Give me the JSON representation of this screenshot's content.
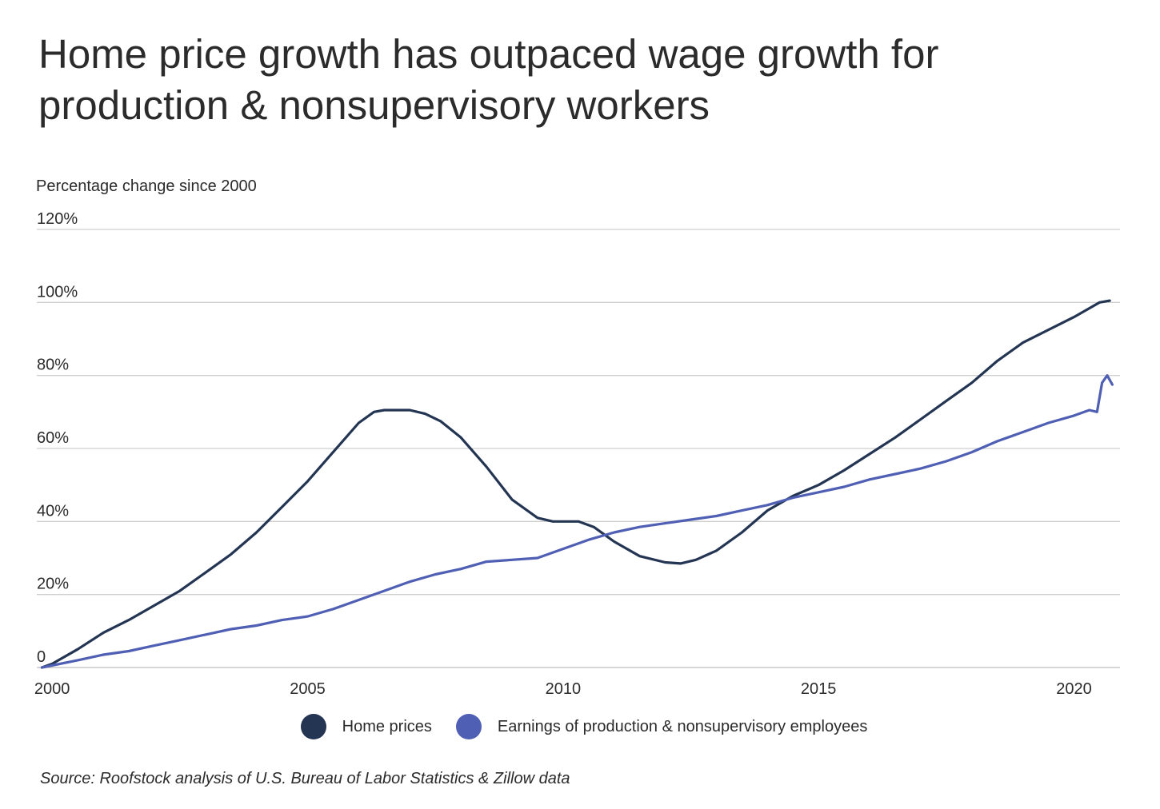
{
  "title": "Home price growth has outpaced wage growth for production & nonsupervisory workers",
  "colors": {
    "home": "#233552",
    "earnings": "#4f5fb3",
    "grid": "#cfcfcf",
    "text": "#2b2b2b"
  },
  "legend": {
    "home": "Home prices",
    "earnings": "Earnings of production & nonsupervisory employees"
  },
  "source": "Source: Roofstock analysis of U.S. Bureau of Labor Statistics & Zillow data",
  "chart_data": {
    "type": "line",
    "title": "Home price growth has outpaced wage growth for production & nonsupervisory workers",
    "ylabel": "Percentage change since 2000",
    "xlabel": "",
    "xlim": [
      1999.7,
      2020.9
    ],
    "ylim": [
      0,
      120
    ],
    "yticks": [
      {
        "value": 0,
        "label": "0"
      },
      {
        "value": 20,
        "label": "20%"
      },
      {
        "value": 40,
        "label": "40%"
      },
      {
        "value": 60,
        "label": "60%"
      },
      {
        "value": 80,
        "label": "80%"
      },
      {
        "value": 100,
        "label": "100%"
      },
      {
        "value": 120,
        "label": "120%"
      }
    ],
    "xticks": [
      {
        "value": 2000,
        "label": "2000"
      },
      {
        "value": 2005,
        "label": "2005"
      },
      {
        "value": 2010,
        "label": "2010"
      },
      {
        "value": 2015,
        "label": "2015"
      },
      {
        "value": 2020,
        "label": "2020"
      }
    ],
    "grid": true,
    "legend_position": "bottom",
    "series": [
      {
        "name": "Home prices",
        "points": [
          [
            1999.8,
            0
          ],
          [
            2000.0,
            1
          ],
          [
            2000.5,
            5
          ],
          [
            2001.0,
            9.5
          ],
          [
            2001.5,
            13
          ],
          [
            2002.0,
            17
          ],
          [
            2002.5,
            21
          ],
          [
            2003.0,
            26
          ],
          [
            2003.5,
            31
          ],
          [
            2004.0,
            37
          ],
          [
            2004.5,
            44
          ],
          [
            2005.0,
            51
          ],
          [
            2005.5,
            59
          ],
          [
            2006.0,
            67
          ],
          [
            2006.3,
            70
          ],
          [
            2006.5,
            70.5
          ],
          [
            2007.0,
            70.5
          ],
          [
            2007.3,
            69.5
          ],
          [
            2007.6,
            67.5
          ],
          [
            2008.0,
            63
          ],
          [
            2008.5,
            55
          ],
          [
            2009.0,
            46
          ],
          [
            2009.5,
            41
          ],
          [
            2009.8,
            40
          ],
          [
            2010.3,
            40
          ],
          [
            2010.6,
            38.5
          ],
          [
            2011.0,
            34.5
          ],
          [
            2011.5,
            30.5
          ],
          [
            2012.0,
            28.8
          ],
          [
            2012.3,
            28.5
          ],
          [
            2012.6,
            29.5
          ],
          [
            2013.0,
            32
          ],
          [
            2013.5,
            37
          ],
          [
            2014.0,
            43
          ],
          [
            2014.5,
            47
          ],
          [
            2015.0,
            50
          ],
          [
            2015.5,
            54
          ],
          [
            2016.0,
            58.5
          ],
          [
            2016.5,
            63
          ],
          [
            2017.0,
            68
          ],
          [
            2017.5,
            73
          ],
          [
            2018.0,
            78
          ],
          [
            2018.5,
            84
          ],
          [
            2019.0,
            89
          ],
          [
            2019.5,
            92.5
          ],
          [
            2020.0,
            96
          ],
          [
            2020.5,
            100
          ],
          [
            2020.7,
            100.5
          ]
        ]
      },
      {
        "name": "Earnings of production & nonsupervisory employees",
        "points": [
          [
            1999.8,
            0
          ],
          [
            2000.5,
            2
          ],
          [
            2001.0,
            3.5
          ],
          [
            2001.5,
            4.5
          ],
          [
            2002.0,
            6
          ],
          [
            2002.5,
            7.5
          ],
          [
            2003.0,
            9
          ],
          [
            2003.5,
            10.5
          ],
          [
            2004.0,
            11.5
          ],
          [
            2004.5,
            13
          ],
          [
            2005.0,
            14
          ],
          [
            2005.5,
            16
          ],
          [
            2006.0,
            18.5
          ],
          [
            2006.5,
            21
          ],
          [
            2007.0,
            23.5
          ],
          [
            2007.5,
            25.5
          ],
          [
            2008.0,
            27
          ],
          [
            2008.5,
            29
          ],
          [
            2009.0,
            29.5
          ],
          [
            2009.5,
            30
          ],
          [
            2010.0,
            32.5
          ],
          [
            2010.5,
            35
          ],
          [
            2011.0,
            37
          ],
          [
            2011.5,
            38.5
          ],
          [
            2012.0,
            39.5
          ],
          [
            2012.5,
            40.5
          ],
          [
            2013.0,
            41.5
          ],
          [
            2013.5,
            43
          ],
          [
            2014.0,
            44.5
          ],
          [
            2014.5,
            46.5
          ],
          [
            2015.0,
            48
          ],
          [
            2015.5,
            49.5
          ],
          [
            2016.0,
            51.5
          ],
          [
            2016.5,
            53
          ],
          [
            2017.0,
            54.5
          ],
          [
            2017.5,
            56.5
          ],
          [
            2018.0,
            59
          ],
          [
            2018.5,
            62
          ],
          [
            2019.0,
            64.5
          ],
          [
            2019.5,
            67
          ],
          [
            2020.0,
            69
          ],
          [
            2020.3,
            70.5
          ],
          [
            2020.45,
            70
          ],
          [
            2020.55,
            78
          ],
          [
            2020.65,
            80
          ],
          [
            2020.75,
            77.5
          ]
        ]
      }
    ]
  }
}
